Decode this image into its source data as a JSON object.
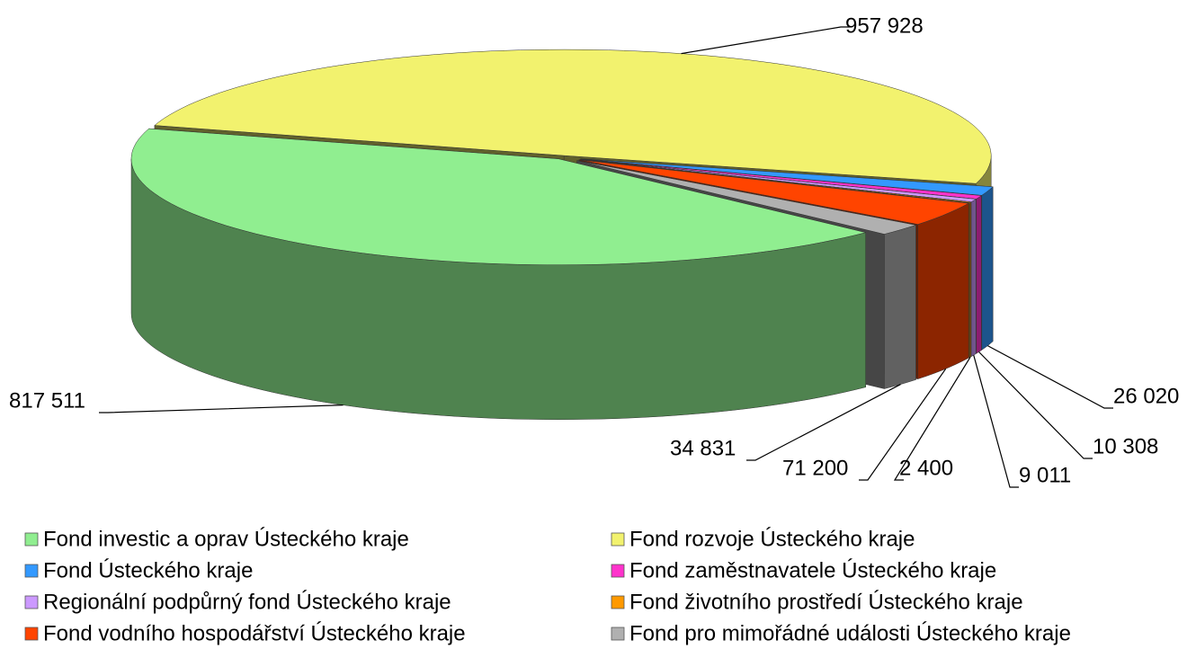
{
  "chart_data": {
    "type": "pie",
    "categories": [
      "Fond investic a oprav Ústeckého kraje",
      "Fond rozvoje Ústeckého kraje",
      "Fond Ústeckého kraje",
      "Fond zaměstnavatele Ústeckého kraje",
      "Regionální podpůrný fond Ústeckého kraje",
      "Fond životního prostředí Ústeckého kraje",
      "Fond vodního hospodářství Ústeckého kraje",
      "Fond pro mimořádné události Ústeckého kraje"
    ],
    "values": [
      817511,
      957928,
      26020,
      10308,
      9011,
      2400,
      71200,
      34831
    ],
    "value_labels": [
      "817 511",
      "957 928",
      "26 020",
      "10 308",
      "9 011",
      "2 400",
      "71 200",
      "34 831"
    ],
    "colors": [
      "#90ee90",
      "#f2f26e",
      "#3399ff",
      "#ff33cc",
      "#cc99ff",
      "#ff9900",
      "#ff4400",
      "#b0b0b0"
    ],
    "legend": "bottom"
  }
}
